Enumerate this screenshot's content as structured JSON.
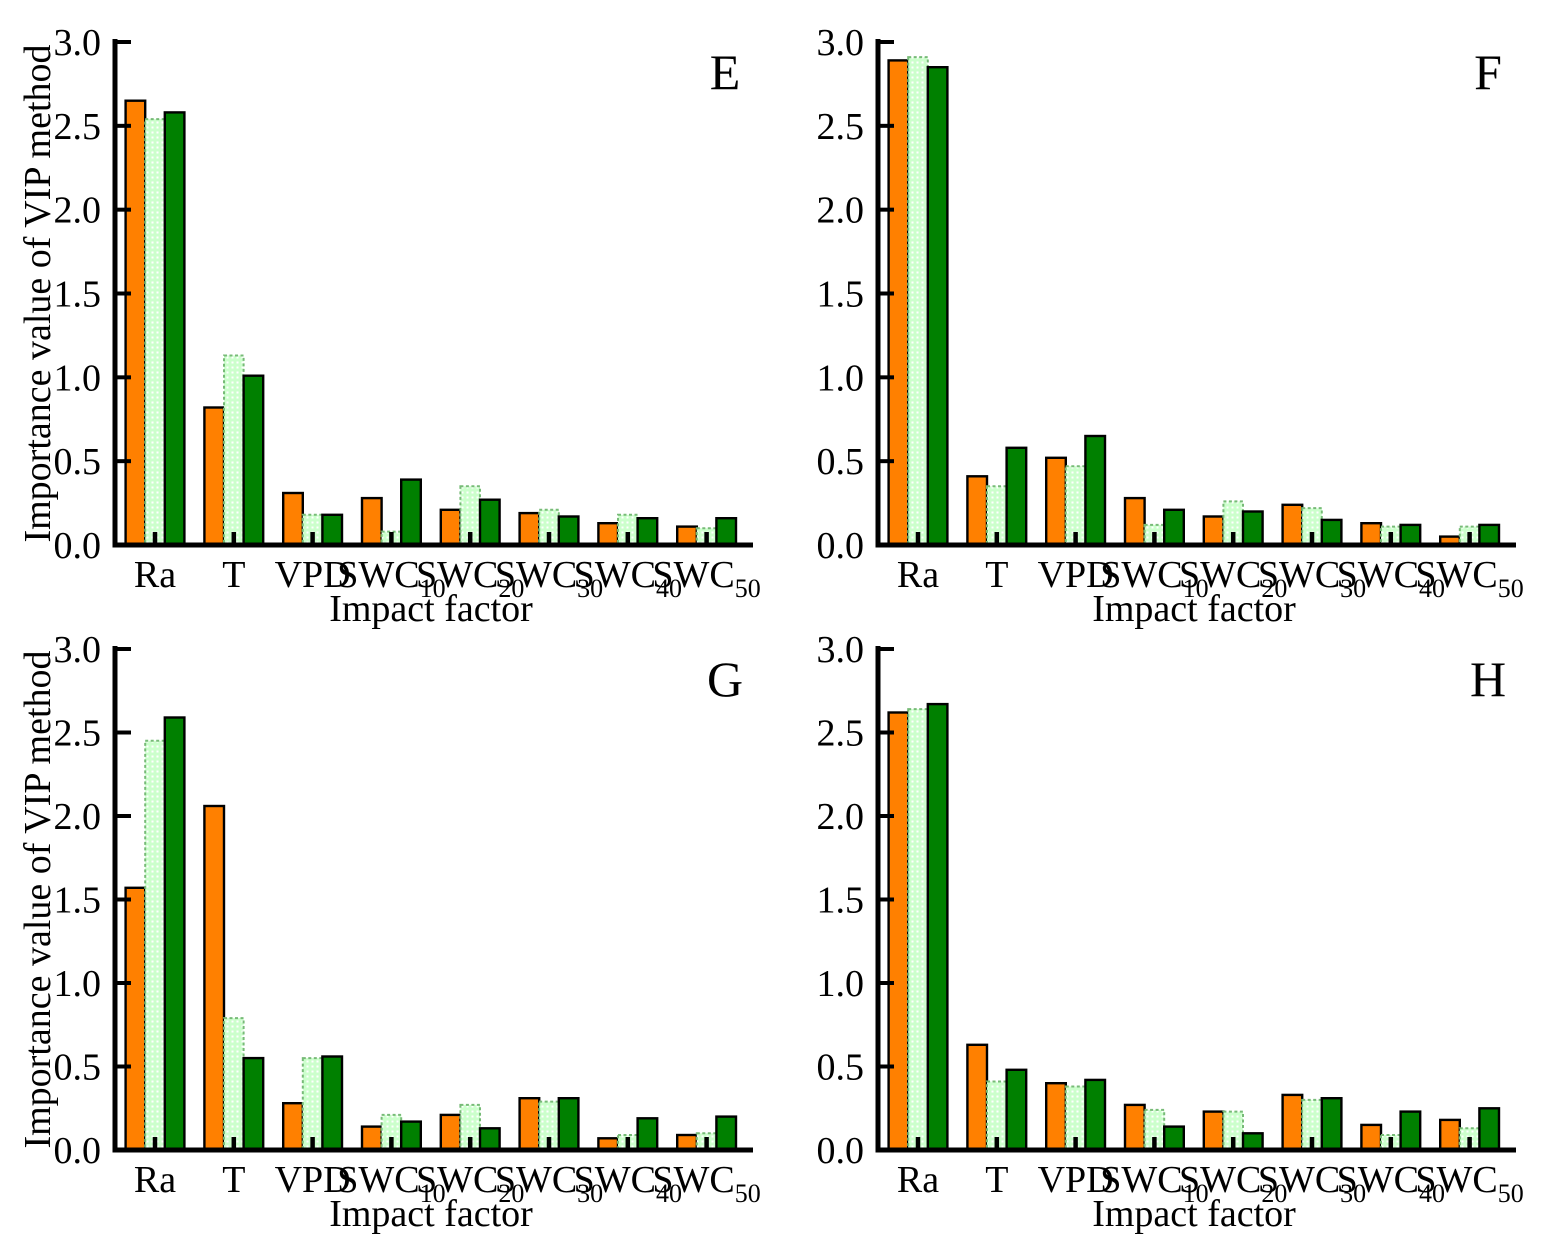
{
  "figure": {
    "panel_labels": [
      "E",
      "F",
      "G",
      "H"
    ],
    "ylabel": "Importance value of VIP method",
    "xlabel": "Impact factor",
    "background": "#FFFFFF"
  },
  "colors": {
    "series_orange": "#FF8000",
    "series_light_green": "#CCFFCC",
    "series_light_green_edge": "#77BB77",
    "series_dark_green": "#008000",
    "bar_edge": "#000000",
    "axis": "#000000"
  },
  "chart_data": [
    {
      "type": "bar",
      "panel_label": "E",
      "xlabel": "Impact factor",
      "ylabel": "Importance value of VIP method",
      "categories": [
        "Ra",
        "T",
        "VPD",
        "SWC10",
        "SWC20",
        "SWC30",
        "SWC40",
        "SWC50"
      ],
      "ylim": [
        0.0,
        3.0
      ],
      "yticks": [
        0.0,
        0.5,
        1.0,
        1.5,
        2.0,
        2.5,
        3.0
      ],
      "grid": "off",
      "legend": "none",
      "series": [
        {
          "name": "series-1-orange",
          "appearance": "solid orange",
          "color": "#FF8000",
          "values": [
            2.65,
            0.82,
            0.31,
            0.28,
            0.21,
            0.19,
            0.13,
            0.11
          ]
        },
        {
          "name": "series-2-light-green-hatched",
          "appearance": "light green dotted hatch",
          "color": "#CCFFCC",
          "values": [
            2.54,
            1.13,
            0.18,
            0.08,
            0.35,
            0.21,
            0.18,
            0.1
          ]
        },
        {
          "name": "series-3-dark-green",
          "appearance": "solid dark green",
          "color": "#008000",
          "values": [
            2.58,
            1.01,
            0.18,
            0.39,
            0.27,
            0.17,
            0.16,
            0.16
          ]
        }
      ]
    },
    {
      "type": "bar",
      "panel_label": "F",
      "xlabel": "Impact factor",
      "ylabel": "Importance value of VIP method",
      "categories": [
        "Ra",
        "T",
        "VPD",
        "SWC10",
        "SWC20",
        "SWC30",
        "SWC40",
        "SWC50"
      ],
      "ylim": [
        0.0,
        3.0
      ],
      "yticks": [
        0.0,
        0.5,
        1.0,
        1.5,
        2.0,
        2.5,
        3.0
      ],
      "grid": "off",
      "legend": "none",
      "series": [
        {
          "name": "series-1-orange",
          "appearance": "solid orange",
          "color": "#FF8000",
          "values": [
            2.89,
            0.41,
            0.52,
            0.28,
            0.17,
            0.24,
            0.13,
            0.05
          ]
        },
        {
          "name": "series-2-light-green-hatched",
          "appearance": "light green dotted hatch",
          "color": "#CCFFCC",
          "values": [
            2.91,
            0.35,
            0.47,
            0.12,
            0.26,
            0.22,
            0.11,
            0.11
          ]
        },
        {
          "name": "series-3-dark-green",
          "appearance": "solid dark green",
          "color": "#008000",
          "values": [
            2.85,
            0.58,
            0.65,
            0.21,
            0.2,
            0.15,
            0.12,
            0.12
          ]
        }
      ]
    },
    {
      "type": "bar",
      "panel_label": "G",
      "xlabel": "Impact factor",
      "ylabel": "Importance value of VIP method",
      "categories": [
        "Ra",
        "T",
        "VPD",
        "SWC10",
        "SWC20",
        "SWC30",
        "SWC40",
        "SWC50"
      ],
      "ylim": [
        0.0,
        3.0
      ],
      "yticks": [
        0.0,
        0.5,
        1.0,
        1.5,
        2.0,
        2.5,
        3.0
      ],
      "grid": "off",
      "legend": "none",
      "series": [
        {
          "name": "series-1-orange",
          "appearance": "solid orange",
          "color": "#FF8000",
          "values": [
            1.57,
            2.06,
            0.28,
            0.14,
            0.21,
            0.31,
            0.07,
            0.09
          ]
        },
        {
          "name": "series-2-light-green-hatched",
          "appearance": "light green dotted hatch",
          "color": "#CCFFCC",
          "values": [
            2.45,
            0.79,
            0.55,
            0.21,
            0.27,
            0.29,
            0.09,
            0.1
          ]
        },
        {
          "name": "series-3-dark-green",
          "appearance": "solid dark green",
          "color": "#008000",
          "values": [
            2.59,
            0.55,
            0.56,
            0.17,
            0.13,
            0.31,
            0.19,
            0.2
          ]
        }
      ]
    },
    {
      "type": "bar",
      "panel_label": "H",
      "xlabel": "Impact factor",
      "ylabel": "Importance value of VIP method",
      "categories": [
        "Ra",
        "T",
        "VPD",
        "SWC10",
        "SWC20",
        "SWC30",
        "SWC40",
        "SWC50"
      ],
      "ylim": [
        0.0,
        3.0
      ],
      "yticks": [
        0.0,
        0.5,
        1.0,
        1.5,
        2.0,
        2.5,
        3.0
      ],
      "grid": "off",
      "legend": "none",
      "series": [
        {
          "name": "series-1-orange",
          "appearance": "solid orange",
          "color": "#FF8000",
          "values": [
            2.62,
            0.63,
            0.4,
            0.27,
            0.23,
            0.33,
            0.15,
            0.18
          ]
        },
        {
          "name": "series-2-light-green-hatched",
          "appearance": "light green dotted hatch",
          "color": "#CCFFCC",
          "values": [
            2.64,
            0.41,
            0.38,
            0.24,
            0.23,
            0.3,
            0.09,
            0.13
          ]
        },
        {
          "name": "series-3-dark-green",
          "appearance": "solid dark green",
          "color": "#008000",
          "values": [
            2.67,
            0.48,
            0.42,
            0.14,
            0.1,
            0.31,
            0.23,
            0.25
          ]
        }
      ]
    }
  ]
}
